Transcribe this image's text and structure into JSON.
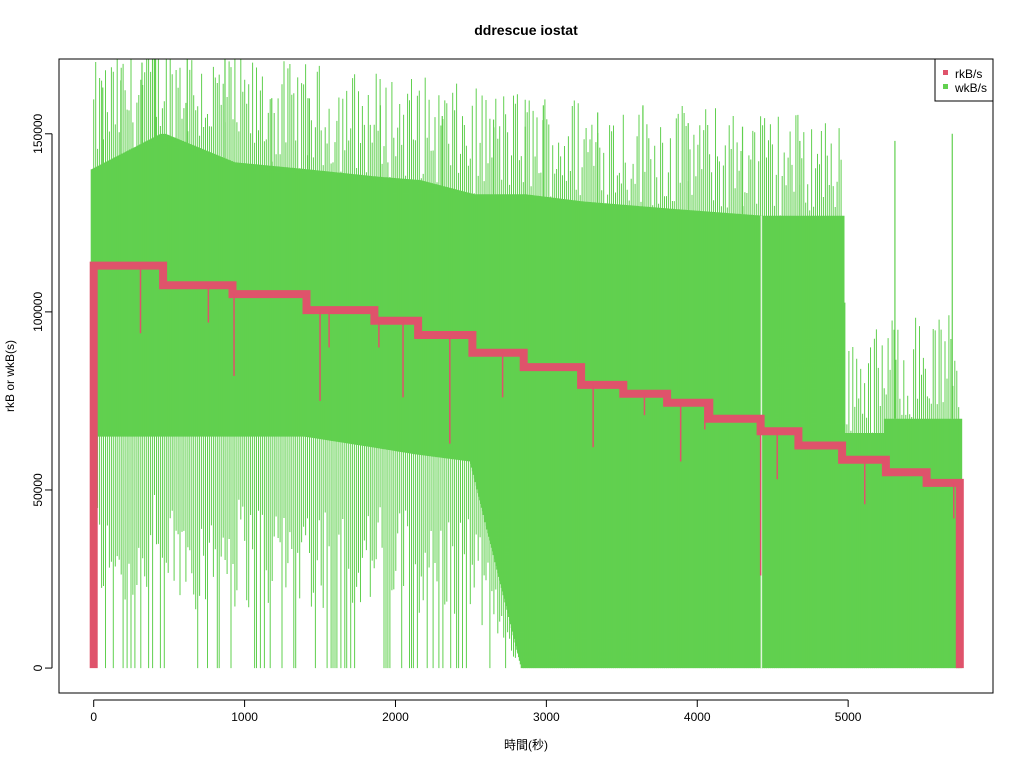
{
  "chart_data": {
    "type": "line",
    "title": "ddrescue iostat",
    "xlabel": "時間(秒)",
    "ylabel": "rkB or wkB(s)",
    "xlim": [
      -230,
      5960
    ],
    "ylim": [
      -7000,
      171000
    ],
    "x_ticks": [
      0,
      1000,
      2000,
      3000,
      4000,
      5000
    ],
    "y_ticks": [
      0,
      50000,
      100000,
      150000
    ],
    "x_tick_labels": [
      "0",
      "1000",
      "2000",
      "3000",
      "4000",
      "5000"
    ],
    "y_tick_labels": [
      "0",
      "50000",
      "100000",
      "150000"
    ],
    "legend_position": "top-right",
    "grid": false,
    "series": [
      {
        "name": "rkB/s",
        "color": "#DF536B",
        "draw_order": 1,
        "steps": [
          {
            "x0": 0,
            "x1": 460,
            "y": 113000
          },
          {
            "x0": 460,
            "x1": 920,
            "y": 107500
          },
          {
            "x0": 920,
            "x1": 1410,
            "y": 105000
          },
          {
            "x0": 1410,
            "x1": 1860,
            "y": 100500
          },
          {
            "x0": 1860,
            "x1": 2150,
            "y": 97500
          },
          {
            "x0": 2150,
            "x1": 2510,
            "y": 93500
          },
          {
            "x0": 2510,
            "x1": 2850,
            "y": 88500
          },
          {
            "x0": 2850,
            "x1": 3230,
            "y": 84500
          },
          {
            "x0": 3230,
            "x1": 3510,
            "y": 79500
          },
          {
            "x0": 3510,
            "x1": 3800,
            "y": 77000
          },
          {
            "x0": 3800,
            "x1": 4080,
            "y": 74500
          },
          {
            "x0": 4080,
            "x1": 4420,
            "y": 70000
          },
          {
            "x0": 4420,
            "x1": 4670,
            "y": 66500
          },
          {
            "x0": 4670,
            "x1": 4960,
            "y": 62500
          },
          {
            "x0": 4960,
            "x1": 5250,
            "y": 58500
          },
          {
            "x0": 5250,
            "x1": 5520,
            "y": 55000
          },
          {
            "x0": 5520,
            "x1": 5740,
            "y": 52000
          }
        ],
        "dips": [
          {
            "x": 310,
            "y": 94000
          },
          {
            "x": 760,
            "y": 97000
          },
          {
            "x": 930,
            "y": 82000
          },
          {
            "x": 1500,
            "y": 75000
          },
          {
            "x": 1560,
            "y": 90000
          },
          {
            "x": 1890,
            "y": 90000
          },
          {
            "x": 2050,
            "y": 76000
          },
          {
            "x": 2360,
            "y": 63000
          },
          {
            "x": 2710,
            "y": 76000
          },
          {
            "x": 3310,
            "y": 62000
          },
          {
            "x": 3650,
            "y": 71000
          },
          {
            "x": 3890,
            "y": 58000
          },
          {
            "x": 4050,
            "y": 67000
          },
          {
            "x": 4420,
            "y": 26000
          },
          {
            "x": 4530,
            "y": 53000
          },
          {
            "x": 5110,
            "y": 46000
          },
          {
            "x": 5700,
            "y": 42000
          }
        ]
      },
      {
        "name": "wkB/s",
        "color": "#61D04F",
        "draw_order": 0,
        "spikes": [
          {
            "x": 60,
            "y": 163000
          },
          {
            "x": 180,
            "y": 165000
          },
          {
            "x": 320,
            "y": 170000
          },
          {
            "x": 390,
            "y": 177000
          },
          {
            "x": 410,
            "y": 177000
          },
          {
            "x": 620,
            "y": 175000
          },
          {
            "x": 870,
            "y": 173000
          },
          {
            "x": 1180,
            "y": 160000
          },
          {
            "x": 1420,
            "y": 160000
          },
          {
            "x": 1900,
            "y": 158000
          },
          {
            "x": 2310,
            "y": 155000
          },
          {
            "x": 2650,
            "y": 154000
          },
          {
            "x": 2860,
            "y": 152000
          },
          {
            "x": 2980,
            "y": 158000
          },
          {
            "x": 3340,
            "y": 156000
          },
          {
            "x": 3640,
            "y": 158000
          },
          {
            "x": 3940,
            "y": 153000
          },
          {
            "x": 4300,
            "y": 152000
          },
          {
            "x": 4680,
            "y": 148000
          },
          {
            "x": 5310,
            "y": 148000
          },
          {
            "x": 5690,
            "y": 150000
          }
        ],
        "envelope": [
          {
            "x": 0,
            "hi": 140000,
            "lo": 65000
          },
          {
            "x": 460,
            "hi": 150000,
            "lo": 65000
          },
          {
            "x": 920,
            "hi": 142000,
            "lo": 65000
          },
          {
            "x": 1410,
            "hi": 140000,
            "lo": 65000
          },
          {
            "x": 1860,
            "hi": 138000,
            "lo": 62000
          },
          {
            "x": 2150,
            "hi": 137000,
            "lo": 60000
          },
          {
            "x": 2510,
            "hi": 133000,
            "lo": 58000
          },
          {
            "x": 2850,
            "hi": 133000,
            "lo": 0
          },
          {
            "x": 3230,
            "hi": 131000,
            "lo": 0
          },
          {
            "x": 3800,
            "hi": 129000,
            "lo": 0
          },
          {
            "x": 4420,
            "hi": 127000,
            "lo": 0
          },
          {
            "x": 4960,
            "hi": 127000,
            "lo": 0
          },
          {
            "x": 4965,
            "hi": 66000,
            "lo": 0
          },
          {
            "x": 5250,
            "hi": 66000,
            "lo": 0
          },
          {
            "x": 5255,
            "hi": 70000,
            "lo": 0
          },
          {
            "x": 5740,
            "hi": 70000,
            "lo": 0
          }
        ]
      }
    ]
  }
}
